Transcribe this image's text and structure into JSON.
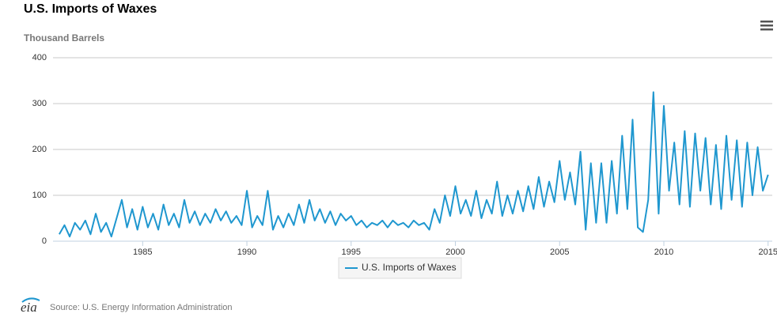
{
  "chart_data": {
    "type": "line",
    "title": "U.S. Imports of Waxes",
    "y_label": "Thousand Barrels",
    "source": "Source: U.S. Energy Information Administration",
    "x": [
      1981,
      1981.25,
      1981.5,
      1981.75,
      1982,
      1982.25,
      1982.5,
      1982.75,
      1983,
      1983.25,
      1983.5,
      1983.75,
      1984,
      1984.25,
      1984.5,
      1984.75,
      1985,
      1985.25,
      1985.5,
      1985.75,
      1986,
      1986.25,
      1986.5,
      1986.75,
      1987,
      1987.25,
      1987.5,
      1987.75,
      1988,
      1988.25,
      1988.5,
      1988.75,
      1989,
      1989.25,
      1989.5,
      1989.75,
      1990,
      1990.25,
      1990.5,
      1990.75,
      1991,
      1991.25,
      1991.5,
      1991.75,
      1992,
      1992.25,
      1992.5,
      1992.75,
      1993,
      1993.25,
      1993.5,
      1993.75,
      1994,
      1994.25,
      1994.5,
      1994.75,
      1995,
      1995.25,
      1995.5,
      1995.75,
      1996,
      1996.25,
      1996.5,
      1996.75,
      1997,
      1997.25,
      1997.5,
      1997.75,
      1998,
      1998.25,
      1998.5,
      1998.75,
      1999,
      1999.25,
      1999.5,
      1999.75,
      2000,
      2000.25,
      2000.5,
      2000.75,
      2001,
      2001.25,
      2001.5,
      2001.75,
      2002,
      2002.25,
      2002.5,
      2002.75,
      2003,
      2003.25,
      2003.5,
      2003.75,
      2004,
      2004.25,
      2004.5,
      2004.75,
      2005,
      2005.25,
      2005.5,
      2005.75,
      2006,
      2006.25,
      2006.5,
      2006.75,
      2007,
      2007.25,
      2007.5,
      2007.75,
      2008,
      2008.25,
      2008.5,
      2008.75,
      2009,
      2009.25,
      2009.5,
      2009.75,
      2010,
      2010.25,
      2010.5,
      2010.75,
      2011,
      2011.25,
      2011.5,
      2011.75,
      2012,
      2012.25,
      2012.5,
      2012.75,
      2013,
      2013.25,
      2013.5,
      2013.75,
      2014,
      2014.25,
      2014.5,
      2014.75,
      2015
    ],
    "series": [
      {
        "name": "U.S. Imports of Waxes",
        "color": "#1f97cf",
        "values": [
          15,
          35,
          10,
          40,
          25,
          45,
          15,
          60,
          20,
          40,
          10,
          50,
          90,
          30,
          70,
          25,
          75,
          30,
          60,
          25,
          80,
          35,
          60,
          30,
          90,
          40,
          65,
          35,
          60,
          40,
          70,
          45,
          65,
          40,
          55,
          35,
          110,
          30,
          55,
          35,
          110,
          25,
          55,
          30,
          60,
          35,
          80,
          40,
          90,
          45,
          70,
          40,
          65,
          35,
          60,
          45,
          55,
          35,
          45,
          30,
          40,
          35,
          45,
          30,
          45,
          35,
          40,
          30,
          45,
          35,
          40,
          25,
          70,
          40,
          100,
          55,
          120,
          60,
          90,
          55,
          110,
          50,
          90,
          60,
          130,
          55,
          100,
          60,
          110,
          65,
          120,
          70,
          140,
          75,
          130,
          85,
          175,
          90,
          150,
          80,
          195,
          25,
          170,
          40,
          170,
          40,
          175,
          60,
          230,
          70,
          265,
          30,
          20,
          90,
          325,
          60,
          295,
          110,
          215,
          80,
          240,
          75,
          235,
          110,
          225,
          80,
          210,
          70,
          230,
          90,
          220,
          75,
          215,
          100,
          205,
          110,
          145
        ]
      }
    ],
    "xlim": [
      1980.7,
      2015.2
    ],
    "xticks": [
      1985,
      1990,
      1995,
      2000,
      2005,
      2010,
      2015
    ],
    "ylim": [
      0,
      400
    ],
    "yticks": [
      0,
      100,
      200,
      300,
      400
    ],
    "grid": true
  }
}
